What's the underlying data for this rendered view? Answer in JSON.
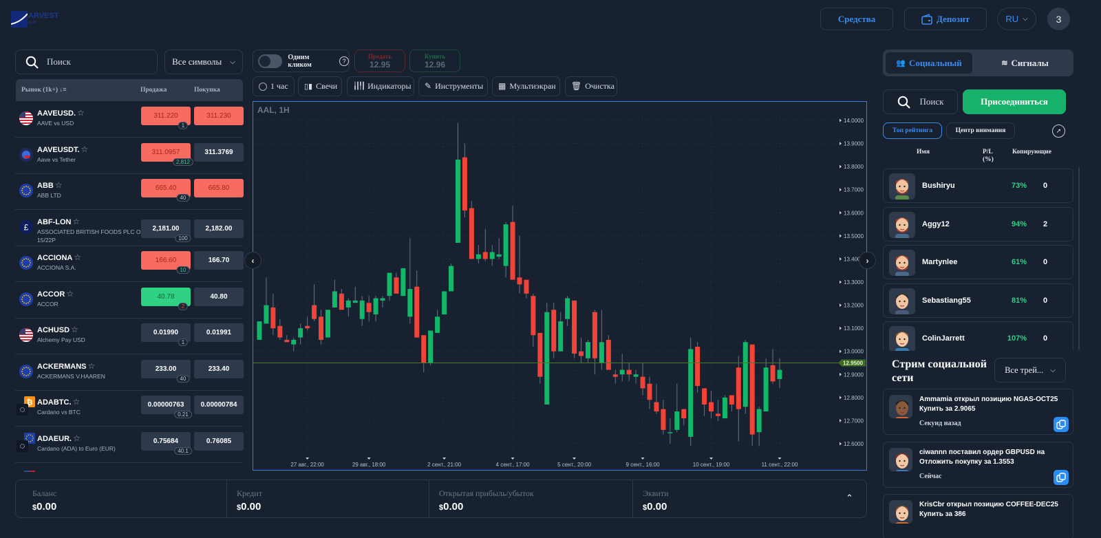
{
  "header": {
    "logo_text": "ARVEST",
    "logo_sub": "gold",
    "funds_label": "Средства",
    "deposit_label": "Депозит",
    "lang": "RU",
    "avatar_initial": "3"
  },
  "market": {
    "search_placeholder": "Поиск",
    "filter": "Все символы",
    "col_market": "Рынок (1k+)",
    "col_sell": "Продажа",
    "col_buy": "Покупка",
    "rows": [
      {
        "symbol": "AAVEUSD.",
        "desc": "AAVE vs USD",
        "sell": "311.220",
        "buy": "311.230",
        "spread": "1",
        "sell_state": "red",
        "buy_state": "red",
        "spread_color": "#b8c0cc",
        "flag": "us-flag-icon"
      },
      {
        "symbol": "AAVEUSDT.",
        "desc": "Aave vs Tether",
        "sell": "311.0957",
        "buy": "311.3769",
        "spread": "2,812",
        "sell_state": "red",
        "buy_state": "",
        "spread_color": "#2fd283",
        "flag": "tether-flag-icon"
      },
      {
        "symbol": "ABB",
        "desc": "ABB LTD",
        "sell": "665.40",
        "buy": "665.80",
        "spread": "40",
        "sell_state": "red",
        "buy_state": "red",
        "spread_color": "#b8c0cc",
        "flag": "eu-flag-icon"
      },
      {
        "symbol": "ABF-LON",
        "desc": "ASSOCIATED BRITISH FOODS PLC ORD 5 15/22P",
        "sell": "2,181.00",
        "buy": "2,182.00",
        "spread": "100",
        "sell_state": "",
        "buy_state": "",
        "spread_color": "#b8c0cc",
        "flag": "gbp-flag-icon"
      },
      {
        "symbol": "ACCIONA",
        "desc": "ACCIONA S.A.",
        "sell": "166.60",
        "buy": "166.70",
        "spread": "10",
        "sell_state": "red",
        "buy_state": "",
        "spread_color": "#2fd283",
        "flag": "eu-flag-icon"
      },
      {
        "symbol": "ACCOR",
        "desc": "ACCOR",
        "sell": "40.78",
        "buy": "40.80",
        "spread": "2",
        "sell_state": "green",
        "buy_state": "",
        "spread_color": "#f04438",
        "flag": "eu-flag-icon"
      },
      {
        "symbol": "ACHUSD",
        "desc": "Alchemy Pay USD",
        "sell": "0.01990",
        "buy": "0.01991",
        "spread": "1",
        "sell_state": "",
        "buy_state": "",
        "spread_color": "#b8c0cc",
        "flag": "us-flag-icon"
      },
      {
        "symbol": "ACKERMANS",
        "desc": "ACKERMANS V.HAAREN",
        "sell": "233.00",
        "buy": "233.40",
        "spread": "40",
        "sell_state": "",
        "buy_state": "",
        "spread_color": "#b8c0cc",
        "flag": "eu-flag-icon"
      },
      {
        "symbol": "ADABTC.",
        "desc": "Cardano vs BTC",
        "sell": "0.00000763",
        "buy": "0.00000784",
        "spread": "0.21",
        "sell_state": "",
        "buy_state": "",
        "spread_color": "#b8c0cc",
        "flag": "btc-ada-flag-icon"
      },
      {
        "symbol": "ADAEUR.",
        "desc": "Cardano (ADA) to Euro (EUR)",
        "sell": "0.75684",
        "buy": "0.76085",
        "spread": "40.1",
        "sell_state": "",
        "buy_state": "",
        "spread_color": "#b8c0cc",
        "flag": "eu-ada-flag-icon"
      }
    ]
  },
  "trade": {
    "one_click": "Одним кликом",
    "one_click_on": false,
    "sell_label": "Продать",
    "sell_price": "12.95",
    "buy_label": "Купить",
    "buy_price": "12.96"
  },
  "toolbar": {
    "interval": "1 час",
    "candles": "Свечи",
    "indicators": "Индикаторы",
    "tools": "Инструменты",
    "multiscreen": "Мультиэкран",
    "clear": "Очистка"
  },
  "chart_data": {
    "type": "candlestick",
    "title": "AAL, 1H",
    "ylim": [
      12.6,
      14.0
    ],
    "y_ticks": [
      "12.6000",
      "12.7000",
      "12.8000",
      "12.9000",
      "13.0000",
      "13.1000",
      "13.2000",
      "13.3000",
      "13.4000",
      "13.5000",
      "13.6000",
      "13.7000",
      "13.8000",
      "13.9000",
      "14.0000"
    ],
    "current_price": 12.95,
    "current_label": "12.9500",
    "x_ticks": [
      {
        "label": "27 авг., 22:00",
        "candle": 7
      },
      {
        "label": "29 авг., 18:00",
        "candle": 16
      },
      {
        "label": "2 сент., 21:00",
        "candle": 27
      },
      {
        "label": "4 сент., 17:00",
        "candle": 37
      },
      {
        "label": "5 сент., 20:00",
        "candle": 46
      },
      {
        "label": "9 сент., 16:00",
        "candle": 56
      },
      {
        "label": "10 сент., 19:00",
        "candle": 66
      },
      {
        "label": "11 сент., 22:00",
        "candle": 76
      }
    ],
    "ohlc": [
      [
        13.05,
        13.13,
        13.05,
        13.13
      ],
      [
        13.12,
        13.32,
        13.12,
        13.2
      ],
      [
        13.19,
        13.25,
        13.07,
        13.1
      ],
      [
        13.11,
        13.14,
        13.05,
        13.06
      ],
      [
        13.05,
        13.07,
        13.04,
        13.04
      ],
      [
        13.03,
        13.06,
        13.0,
        13.05
      ],
      [
        13.06,
        13.12,
        13.03,
        13.1
      ],
      [
        13.11,
        13.15,
        13.09,
        13.1
      ],
      [
        13.2,
        13.29,
        13.13,
        13.14
      ],
      [
        13.15,
        13.18,
        13.03,
        13.05
      ],
      [
        13.06,
        13.18,
        13.06,
        13.18
      ],
      [
        13.19,
        13.31,
        13.19,
        13.26
      ],
      [
        13.25,
        13.27,
        13.18,
        13.18
      ],
      [
        13.19,
        13.23,
        13.15,
        13.22
      ],
      [
        13.21,
        13.28,
        13.21,
        13.22
      ],
      [
        13.14,
        13.24,
        13.11,
        13.22
      ],
      [
        13.21,
        13.24,
        13.13,
        13.17
      ],
      [
        13.16,
        13.24,
        13.13,
        13.23
      ],
      [
        13.22,
        13.24,
        13.19,
        13.23
      ],
      [
        13.24,
        13.34,
        13.22,
        13.34
      ],
      [
        13.32,
        13.34,
        13.25,
        13.25
      ],
      [
        13.24,
        13.36,
        13.24,
        13.36
      ],
      [
        13.15,
        13.49,
        13.12,
        13.27
      ],
      [
        13.28,
        13.35,
        13.06,
        13.06
      ],
      [
        13.07,
        13.07,
        12.91,
        12.95
      ],
      [
        12.95,
        13.09,
        12.94,
        13.09
      ],
      [
        13.08,
        13.18,
        13.08,
        13.15
      ],
      [
        13.16,
        13.26,
        13.16,
        13.26
      ],
      [
        13.26,
        13.38,
        13.26,
        13.37
      ],
      [
        13.47,
        13.99,
        13.47,
        13.83
      ],
      [
        13.84,
        13.9,
        13.58,
        13.61
      ],
      [
        13.62,
        13.65,
        13.4,
        13.4
      ],
      [
        13.4,
        13.46,
        13.38,
        13.42
      ],
      [
        13.43,
        13.53,
        13.39,
        13.4
      ],
      [
        13.4,
        13.46,
        13.37,
        13.43
      ],
      [
        13.41,
        13.49,
        13.4,
        13.42
      ],
      [
        13.37,
        13.56,
        13.32,
        13.55
      ],
      [
        13.56,
        13.63,
        13.31,
        13.31
      ],
      [
        13.32,
        13.5,
        13.25,
        13.29
      ],
      [
        13.31,
        13.31,
        13.23,
        13.25
      ],
      [
        13.24,
        13.25,
        13.02,
        13.07
      ],
      [
        13.08,
        13.08,
        12.86,
        12.89
      ],
      [
        12.77,
        13.21,
        12.77,
        13.17
      ],
      [
        13.18,
        13.21,
        12.97,
        13.0
      ],
      [
        13.0,
        13.17,
        13.0,
        13.13
      ],
      [
        13.14,
        13.24,
        13.11,
        13.23
      ],
      [
        13.22,
        13.22,
        12.97,
        12.99
      ],
      [
        13.0,
        13.06,
        12.95,
        12.98
      ],
      [
        12.97,
        13.05,
        12.95,
        13.04
      ],
      [
        13.17,
        13.18,
        12.9,
        12.97
      ],
      [
        12.95,
        13.18,
        12.92,
        13.04
      ],
      [
        13.05,
        13.07,
        12.92,
        12.92
      ],
      [
        12.9,
        12.92,
        12.86,
        12.89
      ],
      [
        12.9,
        12.99,
        12.87,
        12.92
      ],
      [
        12.92,
        12.95,
        12.87,
        12.9
      ],
      [
        12.89,
        12.92,
        12.86,
        12.9
      ],
      [
        12.89,
        12.95,
        12.81,
        12.84
      ],
      [
        12.86,
        12.89,
        12.75,
        12.79
      ],
      [
        12.78,
        12.86,
        12.73,
        12.74
      ],
      [
        12.75,
        12.79,
        12.64,
        12.66
      ],
      [
        12.65,
        12.71,
        12.6,
        12.65
      ],
      [
        12.66,
        12.86,
        12.65,
        12.74
      ],
      [
        12.75,
        12.75,
        12.68,
        12.71
      ],
      [
        12.63,
        13.06,
        12.59,
        13.01
      ],
      [
        13.02,
        13.04,
        12.82,
        12.85
      ],
      [
        12.84,
        12.84,
        12.72,
        12.77
      ],
      [
        12.78,
        12.83,
        12.71,
        12.74
      ],
      [
        12.73,
        12.79,
        12.7,
        12.72
      ],
      [
        12.71,
        12.81,
        12.71,
        12.8
      ],
      [
        12.81,
        12.81,
        12.74,
        12.77
      ],
      [
        12.93,
        12.98,
        12.61,
        12.75
      ],
      [
        12.76,
        13.05,
        12.73,
        13.04
      ],
      [
        13.03,
        13.03,
        12.59,
        12.64
      ],
      [
        12.65,
        12.76,
        12.59,
        12.75
      ],
      [
        12.74,
        12.97,
        12.74,
        12.93
      ],
      [
        12.94,
        13.01,
        12.86,
        12.87
      ],
      [
        12.88,
        12.97,
        12.84,
        12.92
      ]
    ],
    "up_color": "#12b76a",
    "down_color": "#f04438"
  },
  "account": {
    "items": [
      {
        "label": "Баланс",
        "value": "0.00"
      },
      {
        "label": "Кредит",
        "value": "0.00"
      },
      {
        "label": "Открытая прибыль/убыток",
        "value": "0.00"
      },
      {
        "label": "Эквити",
        "value": "0.00"
      }
    ],
    "currency": "$"
  },
  "social": {
    "tab_social": "Социальный",
    "tab_signals": "Сигналы",
    "search_placeholder": "Поиск",
    "join_label": "Присоединиться",
    "filter_top": "Топ рейтинга",
    "filter_spot": "Центр внимания",
    "col_name": "Имя",
    "col_pl": "P/L (%)",
    "col_copy": "Копирующие",
    "traders": [
      {
        "name": "Bushiryu",
        "pl": "73%",
        "copiers": "0"
      },
      {
        "name": "Aggy12",
        "pl": "94%",
        "copiers": "2"
      },
      {
        "name": "Martynlee",
        "pl": "61%",
        "copiers": "0"
      },
      {
        "name": "Sebastiang55",
        "pl": "81%",
        "copiers": "0"
      },
      {
        "name": "ColinJarrett",
        "pl": "107%",
        "copiers": "0"
      }
    ],
    "stream_title": "Стрим социальной сети",
    "stream_filter": "Все трей...",
    "stream": [
      {
        "text": "Ammamia открыл позицию NGAS-OCT25 Купить за 2.9065",
        "time": "Секунд назад"
      },
      {
        "text": "ciwannn поставил ордер GBPUSD на Отложить покупку за 1.3553",
        "time": "Сейчас"
      },
      {
        "text": "KrisCbr открыл позицию COFFEE-DEC25 Купить за 386",
        "time": ""
      }
    ]
  },
  "colors": {
    "accent": "#3b8cf0",
    "join": "#17b169",
    "bg": "#172130"
  }
}
